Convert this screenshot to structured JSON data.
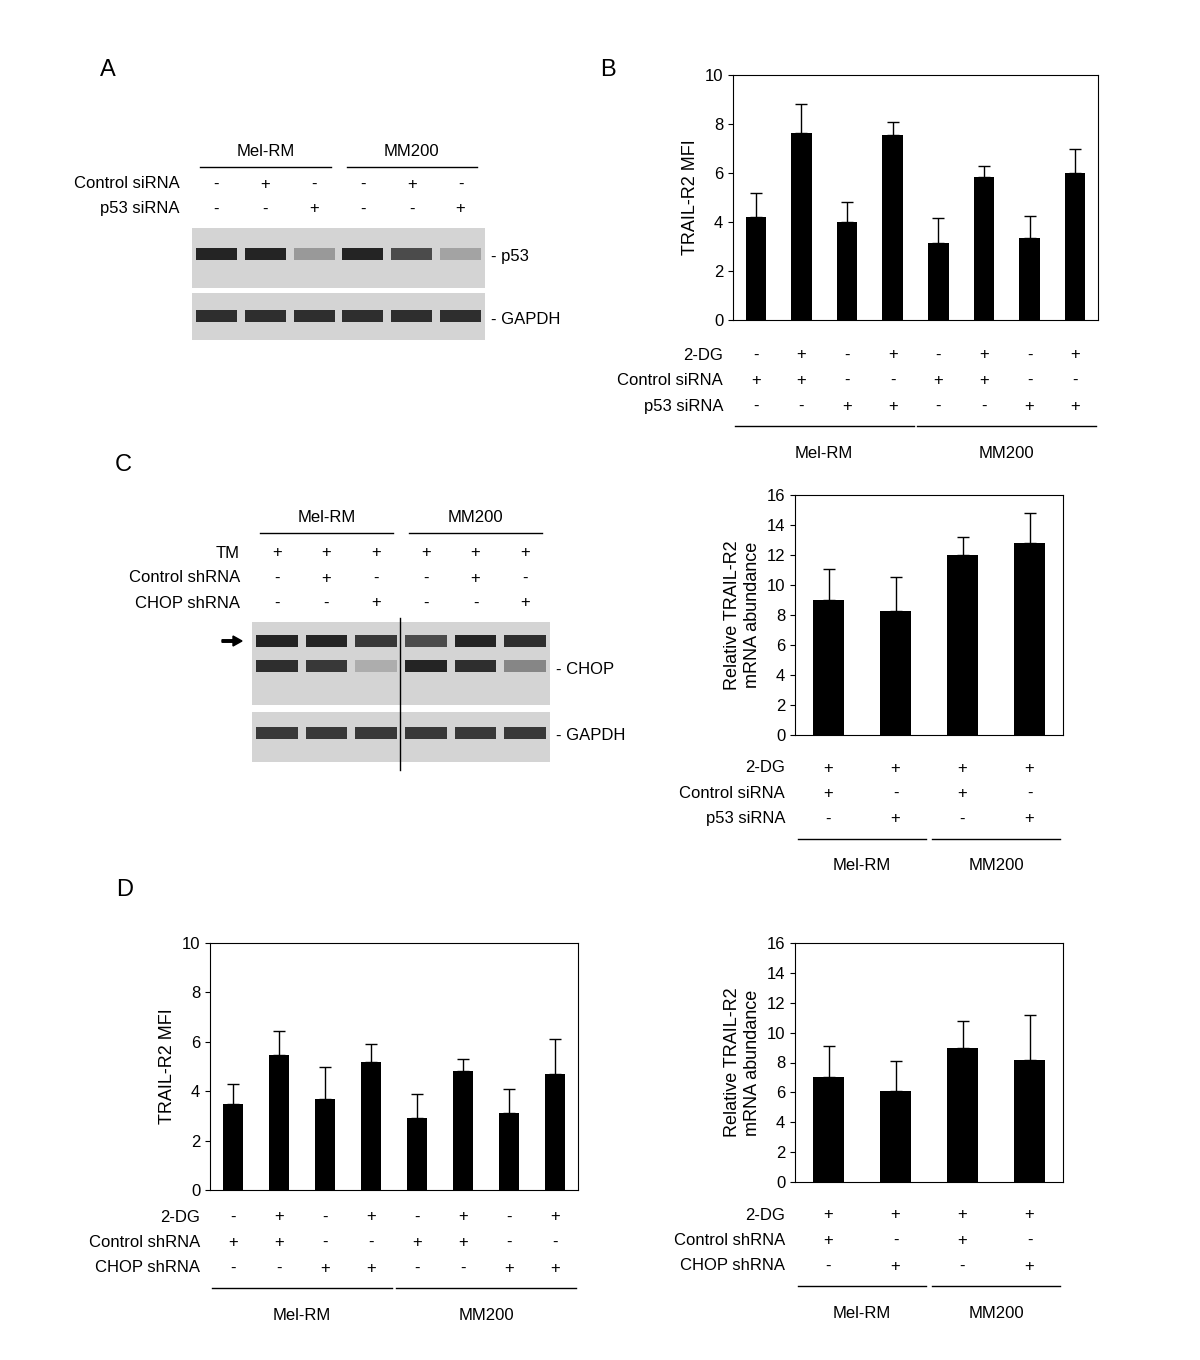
{
  "blots": [
    {
      "panel": "A",
      "groups": [
        {
          "name": "Mel-RM",
          "lanes": 3
        },
        {
          "name": "MM200",
          "lanes": 3
        }
      ],
      "rows": [
        {
          "name": "Control siRNA",
          "values": [
            "-",
            "+",
            "-",
            "-",
            "+",
            "-"
          ]
        },
        {
          "name": "p53 siRNA",
          "values": [
            "-",
            "-",
            "+",
            "-",
            "-",
            "+"
          ]
        }
      ],
      "strips": [
        {
          "label": "- p53",
          "bands": [
            [
              0.9,
              0.9,
              0.3,
              0.9,
              0.7,
              0.25
            ]
          ]
        },
        {
          "label": "- GAPDH",
          "bands": [
            [
              0.85,
              0.85,
              0.85,
              0.85,
              0.85,
              0.85
            ]
          ]
        }
      ]
    },
    {
      "panel": "C",
      "groups": [
        {
          "name": "Mel-RM",
          "lanes": 3
        },
        {
          "name": "MM200",
          "lanes": 3
        }
      ],
      "rows": [
        {
          "name": "TM",
          "values": [
            "+",
            "+",
            "+",
            "+",
            "+",
            "+"
          ]
        },
        {
          "name": "Control shRNA",
          "values": [
            "-",
            "+",
            "-",
            "-",
            "+",
            "-"
          ]
        },
        {
          "name": "CHOP shRNA",
          "values": [
            "-",
            "-",
            "+",
            "-",
            "-",
            "+"
          ]
        }
      ],
      "strips": [
        {
          "label": "- CHOP",
          "bands": [
            [
              0.9,
              0.9,
              0.8,
              0.7,
              0.9,
              0.85
            ],
            [
              0.85,
              0.8,
              0.2,
              0.9,
              0.85,
              0.4
            ]
          ]
        },
        {
          "label": "- GAPDH",
          "bands": [
            [
              0.8,
              0.8,
              0.8,
              0.8,
              0.8,
              0.8
            ]
          ]
        }
      ]
    }
  ],
  "chart_data": [
    {
      "type": "bar",
      "panel": "B",
      "y_label": "TRAIL-R2 MFI",
      "color": "#000000",
      "categories": [
        null,
        null,
        null,
        null,
        null,
        null,
        null,
        null
      ],
      "values": [
        4.2,
        7.65,
        4.0,
        7.55,
        3.15,
        5.85,
        3.35,
        6.0
      ],
      "errors": [
        1.0,
        1.15,
        0.8,
        0.55,
        1.0,
        0.45,
        0.9,
        1.0
      ],
      "ylim": [
        0,
        10
      ],
      "yticks": [
        0,
        2,
        4,
        6,
        8,
        10
      ],
      "conditions": [
        {
          "name": "2-DG",
          "values": [
            "-",
            "+",
            "-",
            "+",
            "-",
            "+",
            "-",
            "+"
          ]
        },
        {
          "name": "Control siRNA",
          "values": [
            "+",
            "+",
            "-",
            "-",
            "+",
            "+",
            "-",
            "-"
          ]
        },
        {
          "name": "p53 siRNA",
          "values": [
            "-",
            "-",
            "+",
            "+",
            "-",
            "-",
            "+",
            "+"
          ]
        }
      ],
      "groups": [
        {
          "name": "Mel-RM",
          "count": 4
        },
        {
          "name": "MM200",
          "count": 4
        }
      ]
    },
    {
      "type": "bar",
      "y_label": "Relative TRAIL-R2\nmRNA abundance",
      "color": "#000000",
      "categories": [
        null,
        null,
        null,
        null
      ],
      "values": [
        9.0,
        8.25,
        12.0,
        12.8
      ],
      "errors": [
        2.05,
        2.25,
        1.2,
        2.0
      ],
      "ylim": [
        0,
        16
      ],
      "yticks": [
        0,
        2,
        4,
        6,
        8,
        10,
        12,
        14,
        16
      ],
      "conditions": [
        {
          "name": "2-DG",
          "values": [
            "+",
            "+",
            "+",
            "+"
          ]
        },
        {
          "name": "Control siRNA",
          "values": [
            "+",
            "-",
            "+",
            "-"
          ]
        },
        {
          "name": "p53 siRNA",
          "values": [
            "-",
            "+",
            "-",
            "+"
          ]
        }
      ],
      "groups": [
        {
          "name": "Mel-RM",
          "count": 2
        },
        {
          "name": "MM200",
          "count": 2
        }
      ]
    },
    {
      "type": "bar",
      "panel": "D",
      "y_label": "TRAIL-R2 MFI",
      "color": "#000000",
      "categories": [
        null,
        null,
        null,
        null,
        null,
        null,
        null,
        null
      ],
      "values": [
        3.5,
        5.45,
        3.7,
        5.2,
        2.9,
        4.8,
        3.1,
        4.7
      ],
      "errors": [
        0.8,
        1.0,
        1.3,
        0.7,
        1.0,
        0.5,
        1.0,
        1.4
      ],
      "ylim": [
        0,
        10
      ],
      "yticks": [
        0,
        2,
        4,
        6,
        8,
        10
      ],
      "conditions": [
        {
          "name": "2-DG",
          "values": [
            "-",
            "+",
            "-",
            "+",
            "-",
            "+",
            "-",
            "+"
          ]
        },
        {
          "name": "Control shRNA",
          "values": [
            "+",
            "+",
            "-",
            "-",
            "+",
            "+",
            "-",
            "-"
          ]
        },
        {
          "name": "CHOP shRNA",
          "values": [
            "-",
            "-",
            "+",
            "+",
            "-",
            "-",
            "+",
            "+"
          ]
        }
      ],
      "groups": [
        {
          "name": "Mel-RM",
          "count": 4
        },
        {
          "name": "MM200",
          "count": 4
        }
      ]
    },
    {
      "type": "bar",
      "y_label": "Relative TRAIL-R2\nmRNA abundance",
      "color": "#000000",
      "categories": [
        null,
        null,
        null,
        null
      ],
      "values": [
        7.0,
        6.1,
        9.0,
        8.2
      ],
      "errors": [
        2.1,
        2.0,
        1.8,
        3.0
      ],
      "ylim": [
        0,
        16
      ],
      "yticks": [
        0,
        2,
        4,
        6,
        8,
        10,
        12,
        14,
        16
      ],
      "conditions": [
        {
          "name": "2-DG",
          "values": [
            "+",
            "+",
            "+",
            "+"
          ]
        },
        {
          "name": "Control shRNA",
          "values": [
            "+",
            "-",
            "+",
            "-"
          ]
        },
        {
          "name": "CHOP shRNA",
          "values": [
            "-",
            "+",
            "-",
            "+"
          ]
        }
      ],
      "groups": [
        {
          "name": "Mel-RM",
          "count": 2
        },
        {
          "name": "MM200",
          "count": 2
        }
      ]
    }
  ]
}
